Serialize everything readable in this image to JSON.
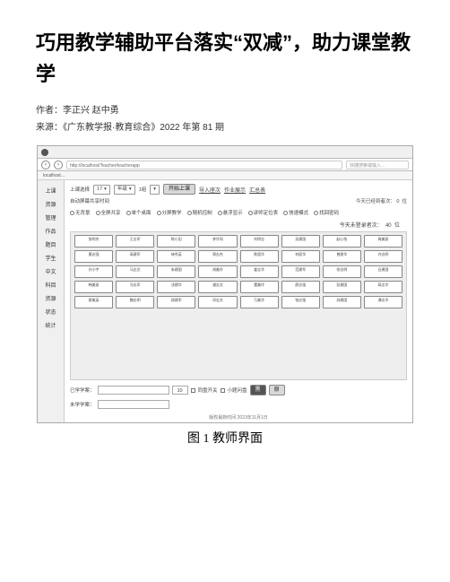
{
  "title": "巧用教学辅助平台落实“双减”，助力课堂教学",
  "author_line": "作者：李正兴 赵中勇",
  "source_line": "来源：《广东教学报·教育综合》2022 年第 81 期",
  "caption": "图 1 教师界面",
  "browser": {
    "url": "http://localhost/Teacher/teacherapp",
    "search_placeholder": "快捷搜索或输入…",
    "bookmark_label": "localhost…",
    "sidebar_items": [
      "上课",
      "资源",
      "管理",
      "作品",
      "题目",
      "学生",
      "中文",
      "科目",
      "资源",
      "状态",
      "统计"
    ],
    "toolbar": {
      "class_sel_label": "上课选择",
      "class_sel_value": "17",
      "grade_sel_value": "年级",
      "period_label": "1组",
      "start_btn": "开始上课",
      "links": [
        "导入座次",
        "作业展示",
        "汇总表"
      ]
    },
    "option_row1_label": "自动屏幕共享时间",
    "stat_already": "今天已经到者次：",
    "stat_already_count": "0",
    "stat_already_unit": "位",
    "options": [
      "无背景",
      "全屏共享",
      "单个桌面",
      "分屏教学",
      "随机控制",
      "悬浮显示",
      "讲师定位表",
      "快速模式",
      "找回密码"
    ],
    "stat_not": "今天未登录者次：",
    "stat_not_count": "40",
    "stat_not_unit": "位",
    "seats": [
      "张明杰",
      "王志军",
      "陈小田",
      "李华同",
      "刘明志",
      "吴建国",
      "赵心怡",
      "周美丽",
      "黄志强",
      "高建军",
      "林秀英",
      "郑志杰",
      "陈国华",
      "何丽华",
      "曾建华",
      "许志明",
      "孙小宇",
      "马志文",
      "朱建国",
      "胡美玲",
      "姜志华",
      "范建军",
      "徐志明",
      "吕建国",
      "韩美丽",
      "冯志军",
      "沈建华",
      "潘志文",
      "董美玲",
      "薛志强",
      "彭建国",
      "蒋志华",
      "蔡美英",
      "魏志明",
      "顾建军",
      "邓志文",
      "万美华",
      "钱志强",
      "苏建国",
      "谭志华"
    ],
    "already_label": "已学学案：",
    "not_label": "未学学案：",
    "countdown_input": "10",
    "toggle1": "同盘开关",
    "toggle2": "小题问盘",
    "black_btn": "黑",
    "red_btn": "原",
    "footer": "版权最新时间 2023年11月1日"
  }
}
